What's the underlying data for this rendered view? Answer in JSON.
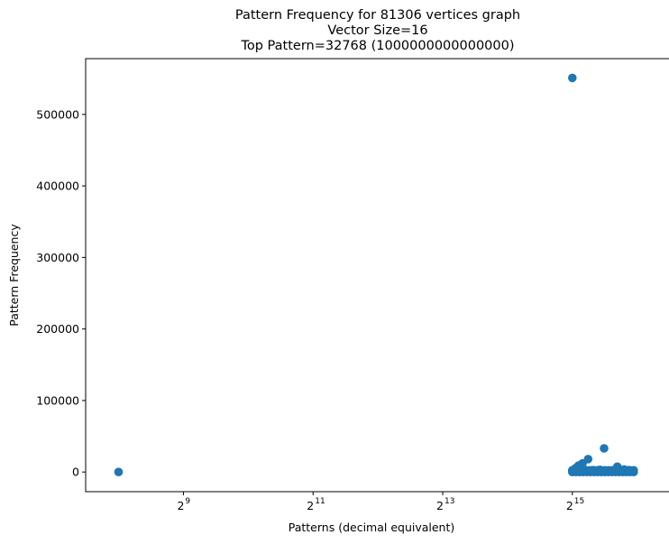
{
  "chart_data": {
    "type": "scatter",
    "title_lines": [
      "Pattern Frequency for 81306 vertices graph",
      "Vector Size=16",
      "Top Pattern=32768 (1000000000000000)"
    ],
    "xlabel": "Patterns (decimal equivalent)",
    "ylabel": "Pattern Frequency",
    "xscale": "log2",
    "xlim": [
      180,
      67000
    ],
    "ylim": [
      -27500,
      578000
    ],
    "grid": false,
    "x_ticks": [
      {
        "value": 512,
        "base": "2",
        "exp": "9"
      },
      {
        "value": 2048,
        "base": "2",
        "exp": "11"
      },
      {
        "value": 8192,
        "base": "2",
        "exp": "13"
      },
      {
        "value": 32768,
        "base": "2",
        "exp": "15"
      }
    ],
    "y_ticks": [
      {
        "value": 0,
        "label": "0"
      },
      {
        "value": 100000,
        "label": "100000"
      },
      {
        "value": 200000,
        "label": "200000"
      },
      {
        "value": 300000,
        "label": "300000"
      },
      {
        "value": 400000,
        "label": "400000"
      },
      {
        "value": 500000,
        "label": "500000"
      }
    ],
    "marker_color": "#1f77b4",
    "points": [
      {
        "x": 256,
        "y": 0
      },
      {
        "x": 32768,
        "y": 551000
      },
      {
        "x": 46000,
        "y": 33000
      },
      {
        "x": 38800,
        "y": 18000
      },
      {
        "x": 36500,
        "y": 12000
      },
      {
        "x": 35000,
        "y": 9000
      },
      {
        "x": 34200,
        "y": 6000
      },
      {
        "x": 33500,
        "y": 4000
      },
      {
        "x": 53000,
        "y": 7500
      },
      {
        "x": 57000,
        "y": 3500
      },
      {
        "x": 60000,
        "y": 2500
      },
      {
        "x": 44000,
        "y": 3000
      },
      {
        "x": 41000,
        "y": 2500
      }
    ],
    "dense_band": {
      "x_start": 32768,
      "x_end": 65535,
      "y_values": [
        0,
        800,
        1600,
        2400
      ]
    }
  }
}
